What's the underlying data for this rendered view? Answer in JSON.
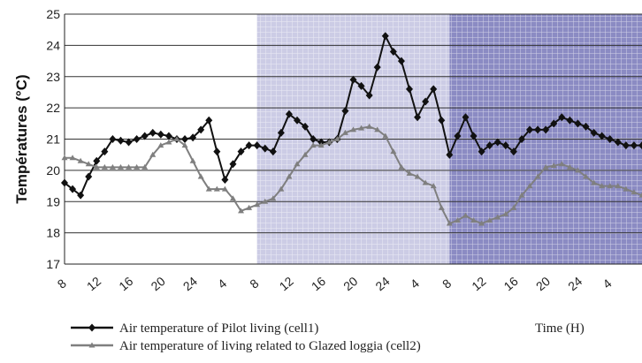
{
  "chart_data": {
    "type": "line",
    "ylabel": "Températures (°C)",
    "xlabel": "Time (H)",
    "ylim": [
      17,
      25
    ],
    "yticks": [
      17,
      18,
      19,
      20,
      21,
      22,
      23,
      24,
      25
    ],
    "xlim": [
      8,
      80
    ],
    "xticks": [
      8,
      12,
      16,
      20,
      24,
      28,
      32,
      36,
      40,
      44,
      48,
      52,
      56,
      60,
      64,
      68,
      72,
      76,
      80
    ],
    "xtick_labels": [
      "8",
      "12",
      "16",
      "20",
      "24",
      "4",
      "8",
      "12",
      "16",
      "20",
      "24",
      "4",
      "8",
      "12",
      "16",
      "20",
      "24",
      "4",
      ""
    ],
    "grid": "horizontal",
    "shaded_regions": [
      {
        "from": 32,
        "to": 56,
        "color": "#c6c6e2"
      },
      {
        "from": 56,
        "to": 80,
        "color": "#7e7ebd"
      }
    ],
    "series": [
      {
        "name": "Air temperature of Pilot living (cell1)",
        "color": "#111111",
        "marker": "diamond",
        "x": [
          8,
          9,
          10,
          11,
          12,
          13,
          14,
          15,
          16,
          17,
          18,
          19,
          20,
          21,
          22,
          23,
          24,
          25,
          26,
          27,
          28,
          29,
          30,
          31,
          32,
          33,
          34,
          35,
          36,
          37,
          38,
          39,
          40,
          41,
          42,
          43,
          44,
          45,
          46,
          47,
          48,
          49,
          50,
          51,
          52,
          53,
          54,
          55,
          56,
          57,
          58,
          59,
          60,
          61,
          62,
          63,
          64,
          65,
          66,
          67,
          68,
          69,
          70,
          71,
          72,
          73,
          74,
          75,
          76,
          77,
          78,
          79,
          80
        ],
        "values": [
          19.6,
          19.4,
          19.2,
          19.8,
          20.3,
          20.6,
          21.0,
          20.95,
          20.9,
          21.0,
          21.1,
          21.2,
          21.15,
          21.1,
          21.0,
          21.0,
          21.05,
          21.3,
          21.6,
          20.6,
          19.7,
          20.2,
          20.6,
          20.8,
          20.8,
          20.7,
          20.6,
          21.2,
          21.8,
          21.6,
          21.4,
          21.0,
          20.9,
          20.9,
          21.0,
          21.9,
          22.9,
          22.7,
          22.4,
          23.3,
          24.3,
          23.8,
          23.5,
          22.6,
          21.7,
          22.2,
          22.6,
          21.6,
          20.5,
          21.1,
          21.7,
          21.1,
          20.6,
          20.8,
          20.9,
          20.8,
          20.6,
          21.0,
          21.3,
          21.3,
          21.3,
          21.5,
          21.7,
          21.6,
          21.5,
          21.4,
          21.2,
          21.1,
          21.0,
          20.9,
          20.8,
          20.8,
          20.8
        ]
      },
      {
        "name": "Air temperature of living related to Glazed loggia (cell2)",
        "color": "#7f7f7f",
        "marker": "triangle",
        "x": [
          8,
          9,
          10,
          11,
          12,
          13,
          14,
          15,
          16,
          17,
          18,
          19,
          20,
          21,
          22,
          23,
          24,
          25,
          26,
          27,
          28,
          29,
          30,
          31,
          32,
          33,
          34,
          35,
          36,
          37,
          38,
          39,
          40,
          41,
          42,
          43,
          44,
          45,
          46,
          47,
          48,
          49,
          50,
          51,
          52,
          53,
          54,
          55,
          56,
          57,
          58,
          59,
          60,
          61,
          62,
          63,
          64,
          65,
          66,
          67,
          68,
          69,
          70,
          71,
          72,
          73,
          74,
          75,
          76,
          77,
          78,
          79,
          80
        ],
        "values": [
          20.4,
          20.4,
          20.3,
          20.2,
          20.1,
          20.1,
          20.1,
          20.1,
          20.1,
          20.1,
          20.1,
          20.5,
          20.8,
          20.9,
          21.0,
          20.8,
          20.3,
          19.8,
          19.4,
          19.4,
          19.4,
          19.1,
          18.7,
          18.8,
          18.9,
          19.0,
          19.1,
          19.4,
          19.8,
          20.2,
          20.5,
          20.8,
          20.8,
          20.9,
          21.0,
          21.2,
          21.3,
          21.35,
          21.4,
          21.3,
          21.1,
          20.6,
          20.1,
          19.9,
          19.8,
          19.6,
          19.5,
          18.8,
          18.3,
          18.4,
          18.55,
          18.4,
          18.3,
          18.4,
          18.5,
          18.6,
          18.8,
          19.2,
          19.5,
          19.8,
          20.1,
          20.15,
          20.2,
          20.1,
          20.0,
          19.8,
          19.6,
          19.5,
          19.5,
          19.5,
          19.4,
          19.3,
          19.2
        ]
      }
    ]
  }
}
